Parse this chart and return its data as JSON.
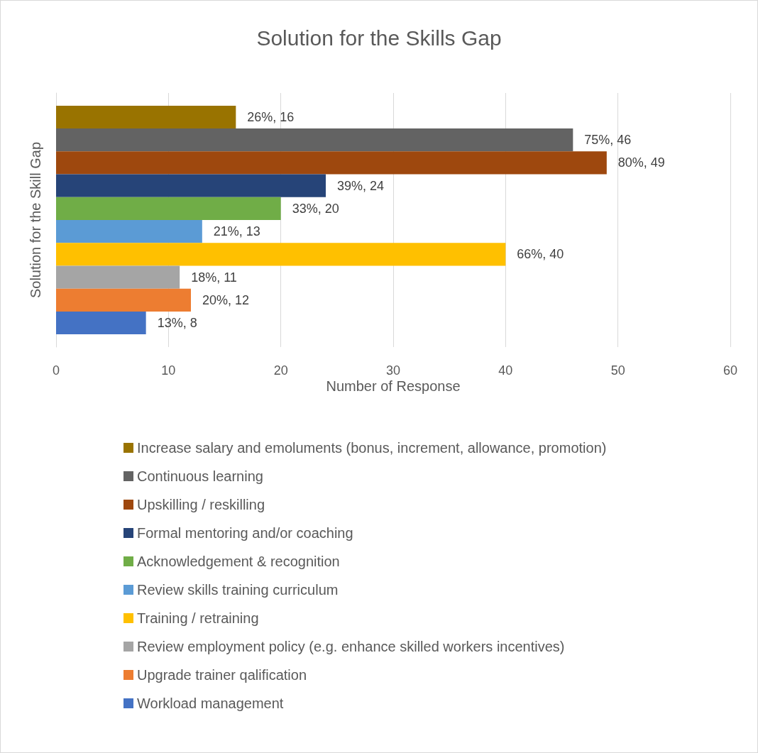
{
  "chart_data": {
    "type": "bar",
    "orientation": "horizontal",
    "title": "Solution for the Skills Gap",
    "xlabel": "Number of Response",
    "ylabel": "Solution for the Skill Gap",
    "categories": [
      null
    ],
    "series": [
      {
        "name": "Increase salary and emoluments (bonus, increment, allowance, promotion)",
        "color": "#997300",
        "values": [
          16
        ],
        "value_labels": [
          "26%, 16"
        ]
      },
      {
        "name": "Continuous learning",
        "color": "#636363",
        "values": [
          46
        ],
        "value_labels": [
          "75%, 46"
        ]
      },
      {
        "name": "Upskilling / reskilling",
        "color": "#9e480e",
        "values": [
          49
        ],
        "value_labels": [
          "80%, 49"
        ]
      },
      {
        "name": "Formal mentoring and/or coaching",
        "color": "#264478",
        "values": [
          24
        ],
        "value_labels": [
          "39%, 24"
        ]
      },
      {
        "name": "Acknowledgement & recognition",
        "color": "#70ad47",
        "values": [
          20
        ],
        "value_labels": [
          "33%, 20"
        ]
      },
      {
        "name": "Review skills training curriculum",
        "color": "#5b9bd5",
        "values": [
          13
        ],
        "value_labels": [
          "21%, 13"
        ]
      },
      {
        "name": "Training / retraining",
        "color": "#ffc000",
        "values": [
          40
        ],
        "value_labels": [
          "66%, 40"
        ]
      },
      {
        "name": "Review employment policy (e.g. enhance skilled workers incentives)",
        "color": "#a5a5a5",
        "values": [
          11
        ],
        "value_labels": [
          "18%, 11"
        ]
      },
      {
        "name": "Upgrade trainer qalification",
        "color": "#ed7d31",
        "values": [
          12
        ],
        "value_labels": [
          "20%, 12"
        ]
      },
      {
        "name": "Workload management",
        "color": "#4472c4",
        "values": [
          8
        ],
        "value_labels": [
          "13%, 8"
        ]
      }
    ],
    "xlim": [
      0,
      60
    ],
    "xticks": [
      0,
      10,
      20,
      30,
      40,
      50,
      60
    ],
    "grid": "x",
    "legend": "bottom"
  }
}
